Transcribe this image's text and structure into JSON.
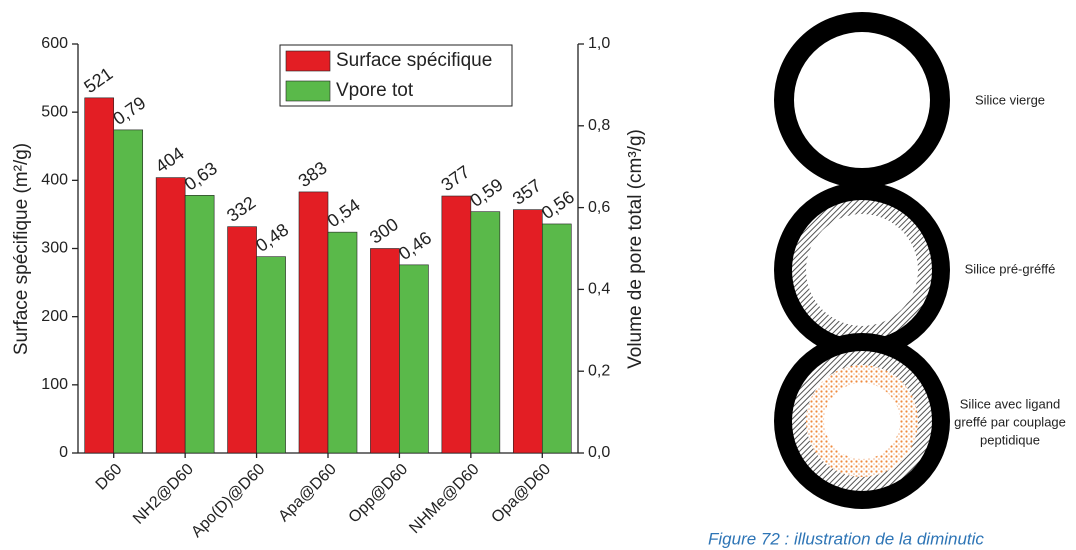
{
  "chart_data": {
    "type": "bar",
    "y_label": "Surface spécifique (m²/g)",
    "y2_label": "Volume de pore total (cm³/g)",
    "categories": [
      "D60",
      "NH2@D60",
      "Apo(D)@D60",
      "Apa@D60",
      "Opp@D60",
      "NHMe@D60",
      "Opa@D60"
    ],
    "series": [
      {
        "name": "Surface spécifique",
        "color": "#e31e24",
        "values": [
          521,
          404,
          332,
          383,
          300,
          377,
          357
        ]
      },
      {
        "name": "Vpore tot",
        "color": "#5ab94a",
        "axis": "y2",
        "values": [
          0.79,
          0.63,
          0.48,
          0.54,
          0.46,
          0.59,
          0.56
        ],
        "value_labels": [
          "0,79",
          "0,63",
          "0,48",
          "0,54",
          "0,46",
          "0,59",
          "0,56"
        ]
      }
    ],
    "ylim": [
      0,
      600
    ],
    "yticks": [
      0,
      100,
      200,
      300,
      400,
      500,
      600
    ],
    "y2lim": [
      0,
      1.0
    ],
    "y2ticks": [
      {
        "value": 0,
        "label": "0,0"
      },
      {
        "value": 0.2,
        "label": "0,2"
      },
      {
        "value": 0.4,
        "label": "0,4"
      },
      {
        "value": 0.6,
        "label": "0,6"
      },
      {
        "value": 0.8,
        "label": "0,8"
      },
      {
        "value": 1.0,
        "label": "1,0"
      }
    ],
    "grid": false,
    "legend": "top"
  },
  "diagram": {
    "items": [
      {
        "label_lines": [
          "Silice vierge"
        ]
      },
      {
        "label_lines": [
          "Silice pré-gréffé"
        ]
      },
      {
        "label_lines": [
          "Silice avec ligand",
          "greffé par couplage",
          "peptidique"
        ]
      }
    ],
    "caption": "Figure 72 : illustration de la diminutic"
  }
}
